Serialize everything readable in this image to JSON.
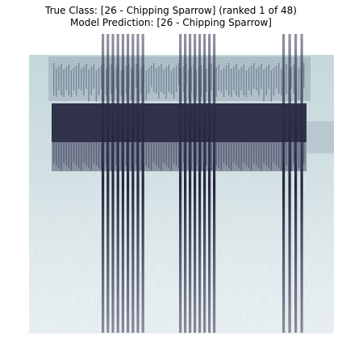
{
  "figure": {
    "title_true": "True Class: [26 - Chipping Sparrow] (ranked 1 of 48)",
    "title_prediction": "Model Prediction: [26 - Chipping Sparrow]"
  },
  "image": {
    "kind": "spectrogram",
    "colormap": "bone_r",
    "colors": {
      "background": "#d7e3e5",
      "light_noise": "#c3d6da",
      "mid": "#8a9aae",
      "dark": "#2b2b45",
      "darkest": "#141428"
    }
  }
}
